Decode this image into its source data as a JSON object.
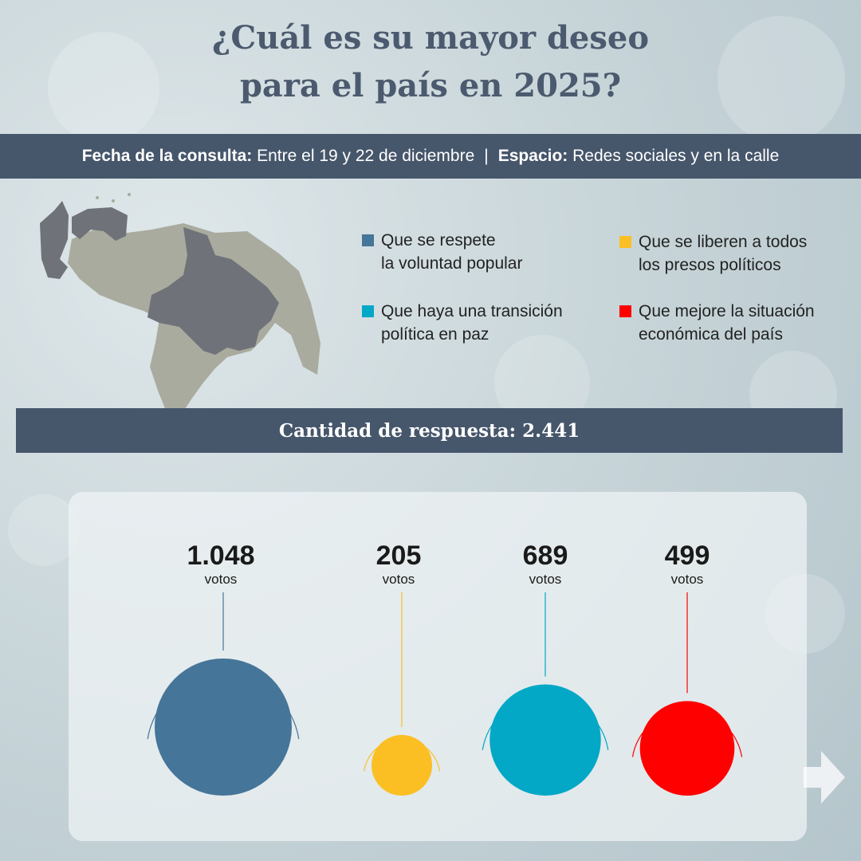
{
  "title": {
    "line1": "¿Cuál es su mayor deseo",
    "line2": "para el país en 2025?"
  },
  "info": {
    "date_label": "Fecha de la consulta:",
    "date_value": "Entre el 19 y 22 de diciembre",
    "separator": "|",
    "space_label": "Espacio:",
    "space_value": "Redes sociales y en la calle"
  },
  "legend": [
    {
      "line1": "Que se respete",
      "line2": "la voluntad popular",
      "color": "#457599"
    },
    {
      "line1": "Que se liberen a todos",
      "line2": "los presos políticos",
      "color": "#fbbf24"
    },
    {
      "line1": "Que haya una transición",
      "line2": "política en paz",
      "color": "#02a8c6"
    },
    {
      "line1": "Que mejore la situación",
      "line2": "económica del país",
      "color": "#fe0000"
    }
  ],
  "count": {
    "label": "Cantidad de respuesta:",
    "value": "2.441"
  },
  "chart_data": {
    "type": "bubble",
    "unit": "votos",
    "categories": [
      "Que se respete la voluntad popular",
      "Que se liberen a todos los presos políticos",
      "Que haya una transición política en paz",
      "Que mejore la situación económica del país"
    ],
    "values": [
      1048,
      205,
      689,
      499
    ],
    "labels": [
      "1.048",
      "205",
      "689",
      "499"
    ],
    "colors": [
      "#457599",
      "#fbbf24",
      "#02a8c6",
      "#fe0000"
    ],
    "total": 2441
  }
}
